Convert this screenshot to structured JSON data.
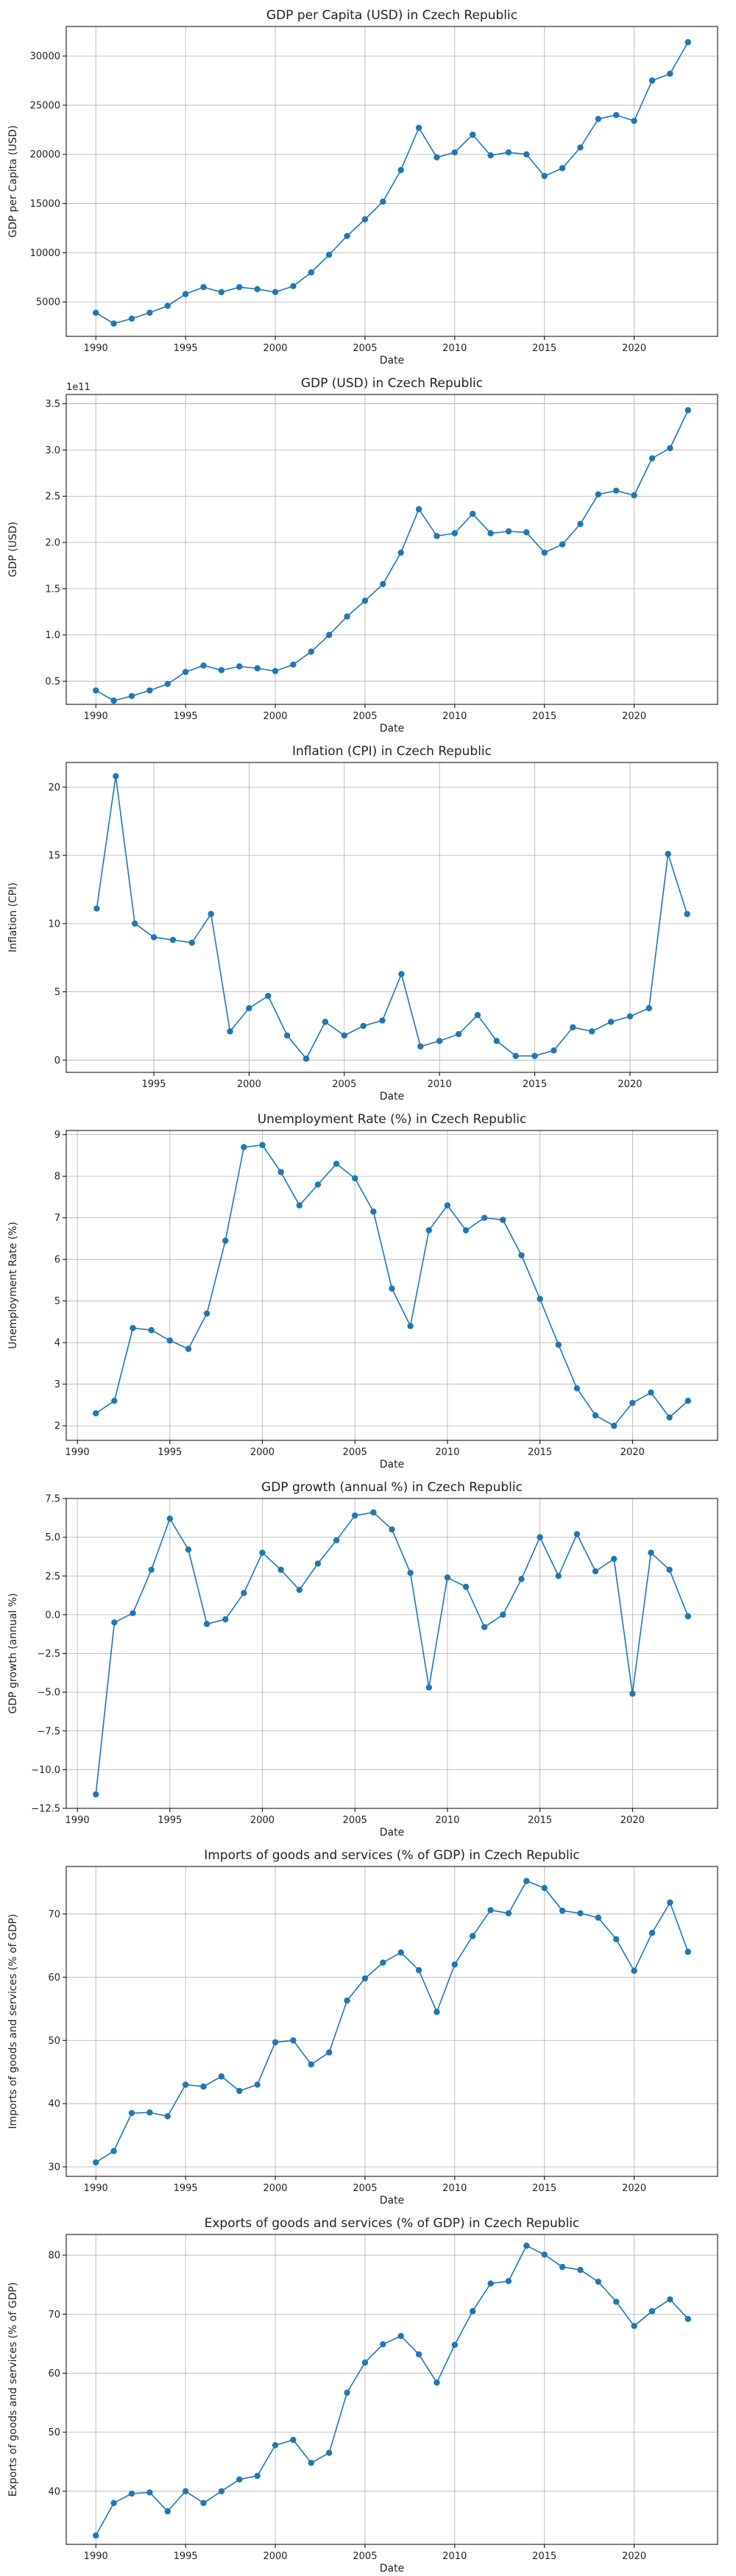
{
  "accent_color": "#1f77b4",
  "chart_data": [
    {
      "type": "line",
      "title": "GDP per Capita (USD) in Czech Republic",
      "xlabel": "Date",
      "ylabel": "GDP per Capita (USD)",
      "xlim": [
        1988.35,
        2024.65
      ],
      "ylim": [
        1500,
        33000
      ],
      "xticks": [
        1990,
        1995,
        2000,
        2005,
        2010,
        2015,
        2020
      ],
      "yticks": [
        5000,
        10000,
        15000,
        20000,
        25000,
        30000
      ],
      "ytick_labels": [
        "5000",
        "10000",
        "15000",
        "20000",
        "25000",
        "30000"
      ],
      "offset_label": "",
      "grid": true,
      "series": [
        {
          "x": [
            1990,
            1991,
            1992,
            1993,
            1994,
            1995,
            1996,
            1997,
            1998,
            1999,
            2000,
            2001,
            2002,
            2003,
            2004,
            2005,
            2006,
            2007,
            2008,
            2009,
            2010,
            2011,
            2012,
            2013,
            2014,
            2015,
            2016,
            2017,
            2018,
            2019,
            2020,
            2021,
            2022,
            2023
          ],
          "y": [
            3900,
            2800,
            3300,
            3900,
            4600,
            5800,
            6500,
            6000,
            6500,
            6300,
            6000,
            6600,
            8000,
            9800,
            11700,
            13400,
            15200,
            18400,
            22700,
            19700,
            20200,
            22000,
            19900,
            20200,
            20000,
            17800,
            18600,
            20700,
            23600,
            24000,
            23400,
            27500,
            28200,
            31400
          ]
        }
      ]
    },
    {
      "type": "line",
      "title": "GDP (USD) in Czech Republic",
      "xlabel": "Date",
      "ylabel": "GDP (USD)",
      "xlim": [
        1988.35,
        2024.65
      ],
      "ylim": [
        0.25,
        3.6
      ],
      "xticks": [
        1990,
        1995,
        2000,
        2005,
        2010,
        2015,
        2020
      ],
      "yticks": [
        0.5,
        1.0,
        1.5,
        2.0,
        2.5,
        3.0,
        3.5
      ],
      "ytick_labels": [
        "0.5",
        "1.0",
        "1.5",
        "2.0",
        "2.5",
        "3.0",
        "3.5"
      ],
      "offset_label": "1e11",
      "grid": true,
      "series": [
        {
          "x": [
            1990,
            1991,
            1992,
            1993,
            1994,
            1995,
            1996,
            1997,
            1998,
            1999,
            2000,
            2001,
            2002,
            2003,
            2004,
            2005,
            2006,
            2007,
            2008,
            2009,
            2010,
            2011,
            2012,
            2013,
            2014,
            2015,
            2016,
            2017,
            2018,
            2019,
            2020,
            2021,
            2022,
            2023
          ],
          "y": [
            0.4,
            0.29,
            0.34,
            0.4,
            0.47,
            0.6,
            0.67,
            0.62,
            0.66,
            0.64,
            0.61,
            0.68,
            0.82,
            1.0,
            1.2,
            1.37,
            1.55,
            1.89,
            2.36,
            2.07,
            2.1,
            2.31,
            2.1,
            2.12,
            2.11,
            1.89,
            1.98,
            2.2,
            2.52,
            2.56,
            2.51,
            2.91,
            3.02,
            3.43
          ]
        }
      ]
    },
    {
      "type": "line",
      "title": "Inflation (CPI) in Czech Republic",
      "xlabel": "Date",
      "ylabel": "Inflation (CPI)",
      "xlim": [
        1990.4,
        2024.6
      ],
      "ylim": [
        -0.9,
        21.8
      ],
      "xticks": [
        1995,
        2000,
        2005,
        2010,
        2015,
        2020
      ],
      "yticks": [
        0,
        5,
        10,
        15,
        20
      ],
      "ytick_labels": [
        "0",
        "5",
        "10",
        "15",
        "20"
      ],
      "offset_label": "",
      "grid": true,
      "series": [
        {
          "x": [
            1992,
            1993,
            1994,
            1995,
            1996,
            1997,
            1998,
            1999,
            2000,
            2001,
            2002,
            2003,
            2004,
            2005,
            2006,
            2007,
            2008,
            2009,
            2010,
            2011,
            2012,
            2013,
            2014,
            2015,
            2016,
            2017,
            2018,
            2019,
            2020,
            2021,
            2022,
            2023
          ],
          "y": [
            11.1,
            20.8,
            10.0,
            9.0,
            8.8,
            8.6,
            10.7,
            2.1,
            3.8,
            4.7,
            1.8,
            0.1,
            2.8,
            1.8,
            2.5,
            2.9,
            6.3,
            1.0,
            1.4,
            1.9,
            3.3,
            1.4,
            0.3,
            0.3,
            0.7,
            2.4,
            2.1,
            2.8,
            3.2,
            3.8,
            15.1,
            10.7
          ]
        }
      ]
    },
    {
      "type": "line",
      "title": "Unemployment Rate (%) in Czech Republic",
      "xlabel": "Date",
      "ylabel": "Unemployment Rate (%)",
      "xlim": [
        1989.4,
        2024.6
      ],
      "ylim": [
        1.65,
        9.1
      ],
      "xticks": [
        1990,
        1995,
        2000,
        2005,
        2010,
        2015,
        2020
      ],
      "yticks": [
        2,
        3,
        4,
        5,
        6,
        7,
        8,
        9
      ],
      "ytick_labels": [
        "2",
        "3",
        "4",
        "5",
        "6",
        "7",
        "8",
        "9"
      ],
      "offset_label": "",
      "grid": true,
      "series": [
        {
          "x": [
            1991,
            1992,
            1993,
            1994,
            1995,
            1996,
            1997,
            1998,
            1999,
            2000,
            2001,
            2002,
            2003,
            2004,
            2005,
            2006,
            2007,
            2008,
            2009,
            2010,
            2011,
            2012,
            2013,
            2014,
            2015,
            2016,
            2017,
            2018,
            2019,
            2020,
            2021,
            2022,
            2023
          ],
          "y": [
            2.3,
            2.6,
            4.35,
            4.3,
            4.05,
            3.85,
            4.7,
            6.45,
            8.7,
            8.75,
            8.1,
            7.3,
            7.8,
            8.3,
            7.95,
            7.15,
            5.3,
            4.4,
            6.7,
            7.3,
            6.7,
            7.0,
            6.95,
            6.1,
            5.05,
            3.95,
            2.9,
            2.25,
            2.0,
            2.55,
            2.8,
            2.2,
            2.6
          ]
        }
      ]
    },
    {
      "type": "line",
      "title": "GDP growth (annual %) in Czech Republic",
      "xlabel": "Date",
      "ylabel": "GDP growth (annual %)",
      "xlim": [
        1989.4,
        2024.6
      ],
      "ylim": [
        -12.5,
        7.5
      ],
      "xticks": [
        1990,
        1995,
        2000,
        2005,
        2010,
        2015,
        2020
      ],
      "yticks": [
        -12.5,
        -10.0,
        -7.5,
        -5.0,
        -2.5,
        0.0,
        2.5,
        5.0,
        7.5
      ],
      "ytick_labels": [
        "−12.5",
        "−10.0",
        "−7.5",
        "−5.0",
        "−2.5",
        "0.0",
        "2.5",
        "5.0",
        "7.5"
      ],
      "offset_label": "",
      "grid": true,
      "series": [
        {
          "x": [
            1991,
            1992,
            1993,
            1994,
            1995,
            1996,
            1997,
            1998,
            1999,
            2000,
            2001,
            2002,
            2003,
            2004,
            2005,
            2006,
            2007,
            2008,
            2009,
            2010,
            2011,
            2012,
            2013,
            2014,
            2015,
            2016,
            2017,
            2018,
            2019,
            2020,
            2021,
            2022,
            2023
          ],
          "y": [
            -11.6,
            -0.5,
            0.1,
            2.9,
            6.2,
            4.2,
            -0.6,
            -0.3,
            1.4,
            4.0,
            2.9,
            1.6,
            3.3,
            4.8,
            6.4,
            6.6,
            5.5,
            2.7,
            -4.7,
            2.4,
            1.8,
            -0.8,
            0.0,
            2.3,
            5.0,
            2.5,
            5.2,
            2.8,
            3.6,
            -5.1,
            4.0,
            2.9,
            -0.1
          ]
        }
      ]
    },
    {
      "type": "line",
      "title": "Imports of goods and services (% of GDP) in Czech Republic",
      "xlabel": "Date",
      "ylabel": "Imports of goods and services (% of GDP)",
      "xlim": [
        1988.35,
        2024.65
      ],
      "ylim": [
        28.5,
        77.5
      ],
      "xticks": [
        1990,
        1995,
        2000,
        2005,
        2010,
        2015,
        2020
      ],
      "yticks": [
        30,
        40,
        50,
        60,
        70
      ],
      "ytick_labels": [
        "30",
        "40",
        "50",
        "60",
        "70"
      ],
      "offset_label": "",
      "grid": true,
      "series": [
        {
          "x": [
            1990,
            1991,
            1992,
            1993,
            1994,
            1995,
            1996,
            1997,
            1998,
            1999,
            2000,
            2001,
            2002,
            2003,
            2004,
            2005,
            2006,
            2007,
            2008,
            2009,
            2010,
            2011,
            2012,
            2013,
            2014,
            2015,
            2016,
            2017,
            2018,
            2019,
            2020,
            2021,
            2022,
            2023
          ],
          "y": [
            30.7,
            32.5,
            38.5,
            38.6,
            38.0,
            43.0,
            42.7,
            44.3,
            42.0,
            43.0,
            49.7,
            50.0,
            46.2,
            48.1,
            56.3,
            59.8,
            62.3,
            63.9,
            61.1,
            54.5,
            62.0,
            66.5,
            70.6,
            70.1,
            75.2,
            74.1,
            70.5,
            70.1,
            69.4,
            66.0,
            61.0,
            67.0,
            71.8,
            64.0
          ]
        }
      ]
    },
    {
      "type": "line",
      "title": "Exports of goods and services (% of GDP) in Czech Republic",
      "xlabel": "Date",
      "ylabel": "Exports of goods and services (% of GDP)",
      "xlim": [
        1988.35,
        2024.65
      ],
      "ylim": [
        31.0,
        83.5
      ],
      "xticks": [
        1990,
        1995,
        2000,
        2005,
        2010,
        2015,
        2020
      ],
      "yticks": [
        40,
        50,
        60,
        70,
        80
      ],
      "ytick_labels": [
        "40",
        "50",
        "60",
        "70",
        "80"
      ],
      "offset_label": "",
      "grid": true,
      "series": [
        {
          "x": [
            1990,
            1991,
            1992,
            1993,
            1994,
            1995,
            1996,
            1997,
            1998,
            1999,
            2000,
            2001,
            2002,
            2003,
            2004,
            2005,
            2006,
            2007,
            2008,
            2009,
            2010,
            2011,
            2012,
            2013,
            2014,
            2015,
            2016,
            2017,
            2018,
            2019,
            2020,
            2021,
            2022,
            2023
          ],
          "y": [
            32.5,
            38.0,
            39.6,
            39.8,
            36.6,
            40.0,
            38.0,
            40.0,
            42.0,
            42.6,
            47.8,
            48.7,
            44.8,
            46.5,
            56.7,
            61.8,
            64.9,
            66.3,
            63.2,
            58.4,
            64.8,
            70.5,
            75.2,
            75.6,
            81.6,
            80.1,
            78.0,
            77.5,
            75.5,
            72.1,
            68.0,
            70.5,
            72.5,
            69.2
          ]
        }
      ]
    }
  ]
}
